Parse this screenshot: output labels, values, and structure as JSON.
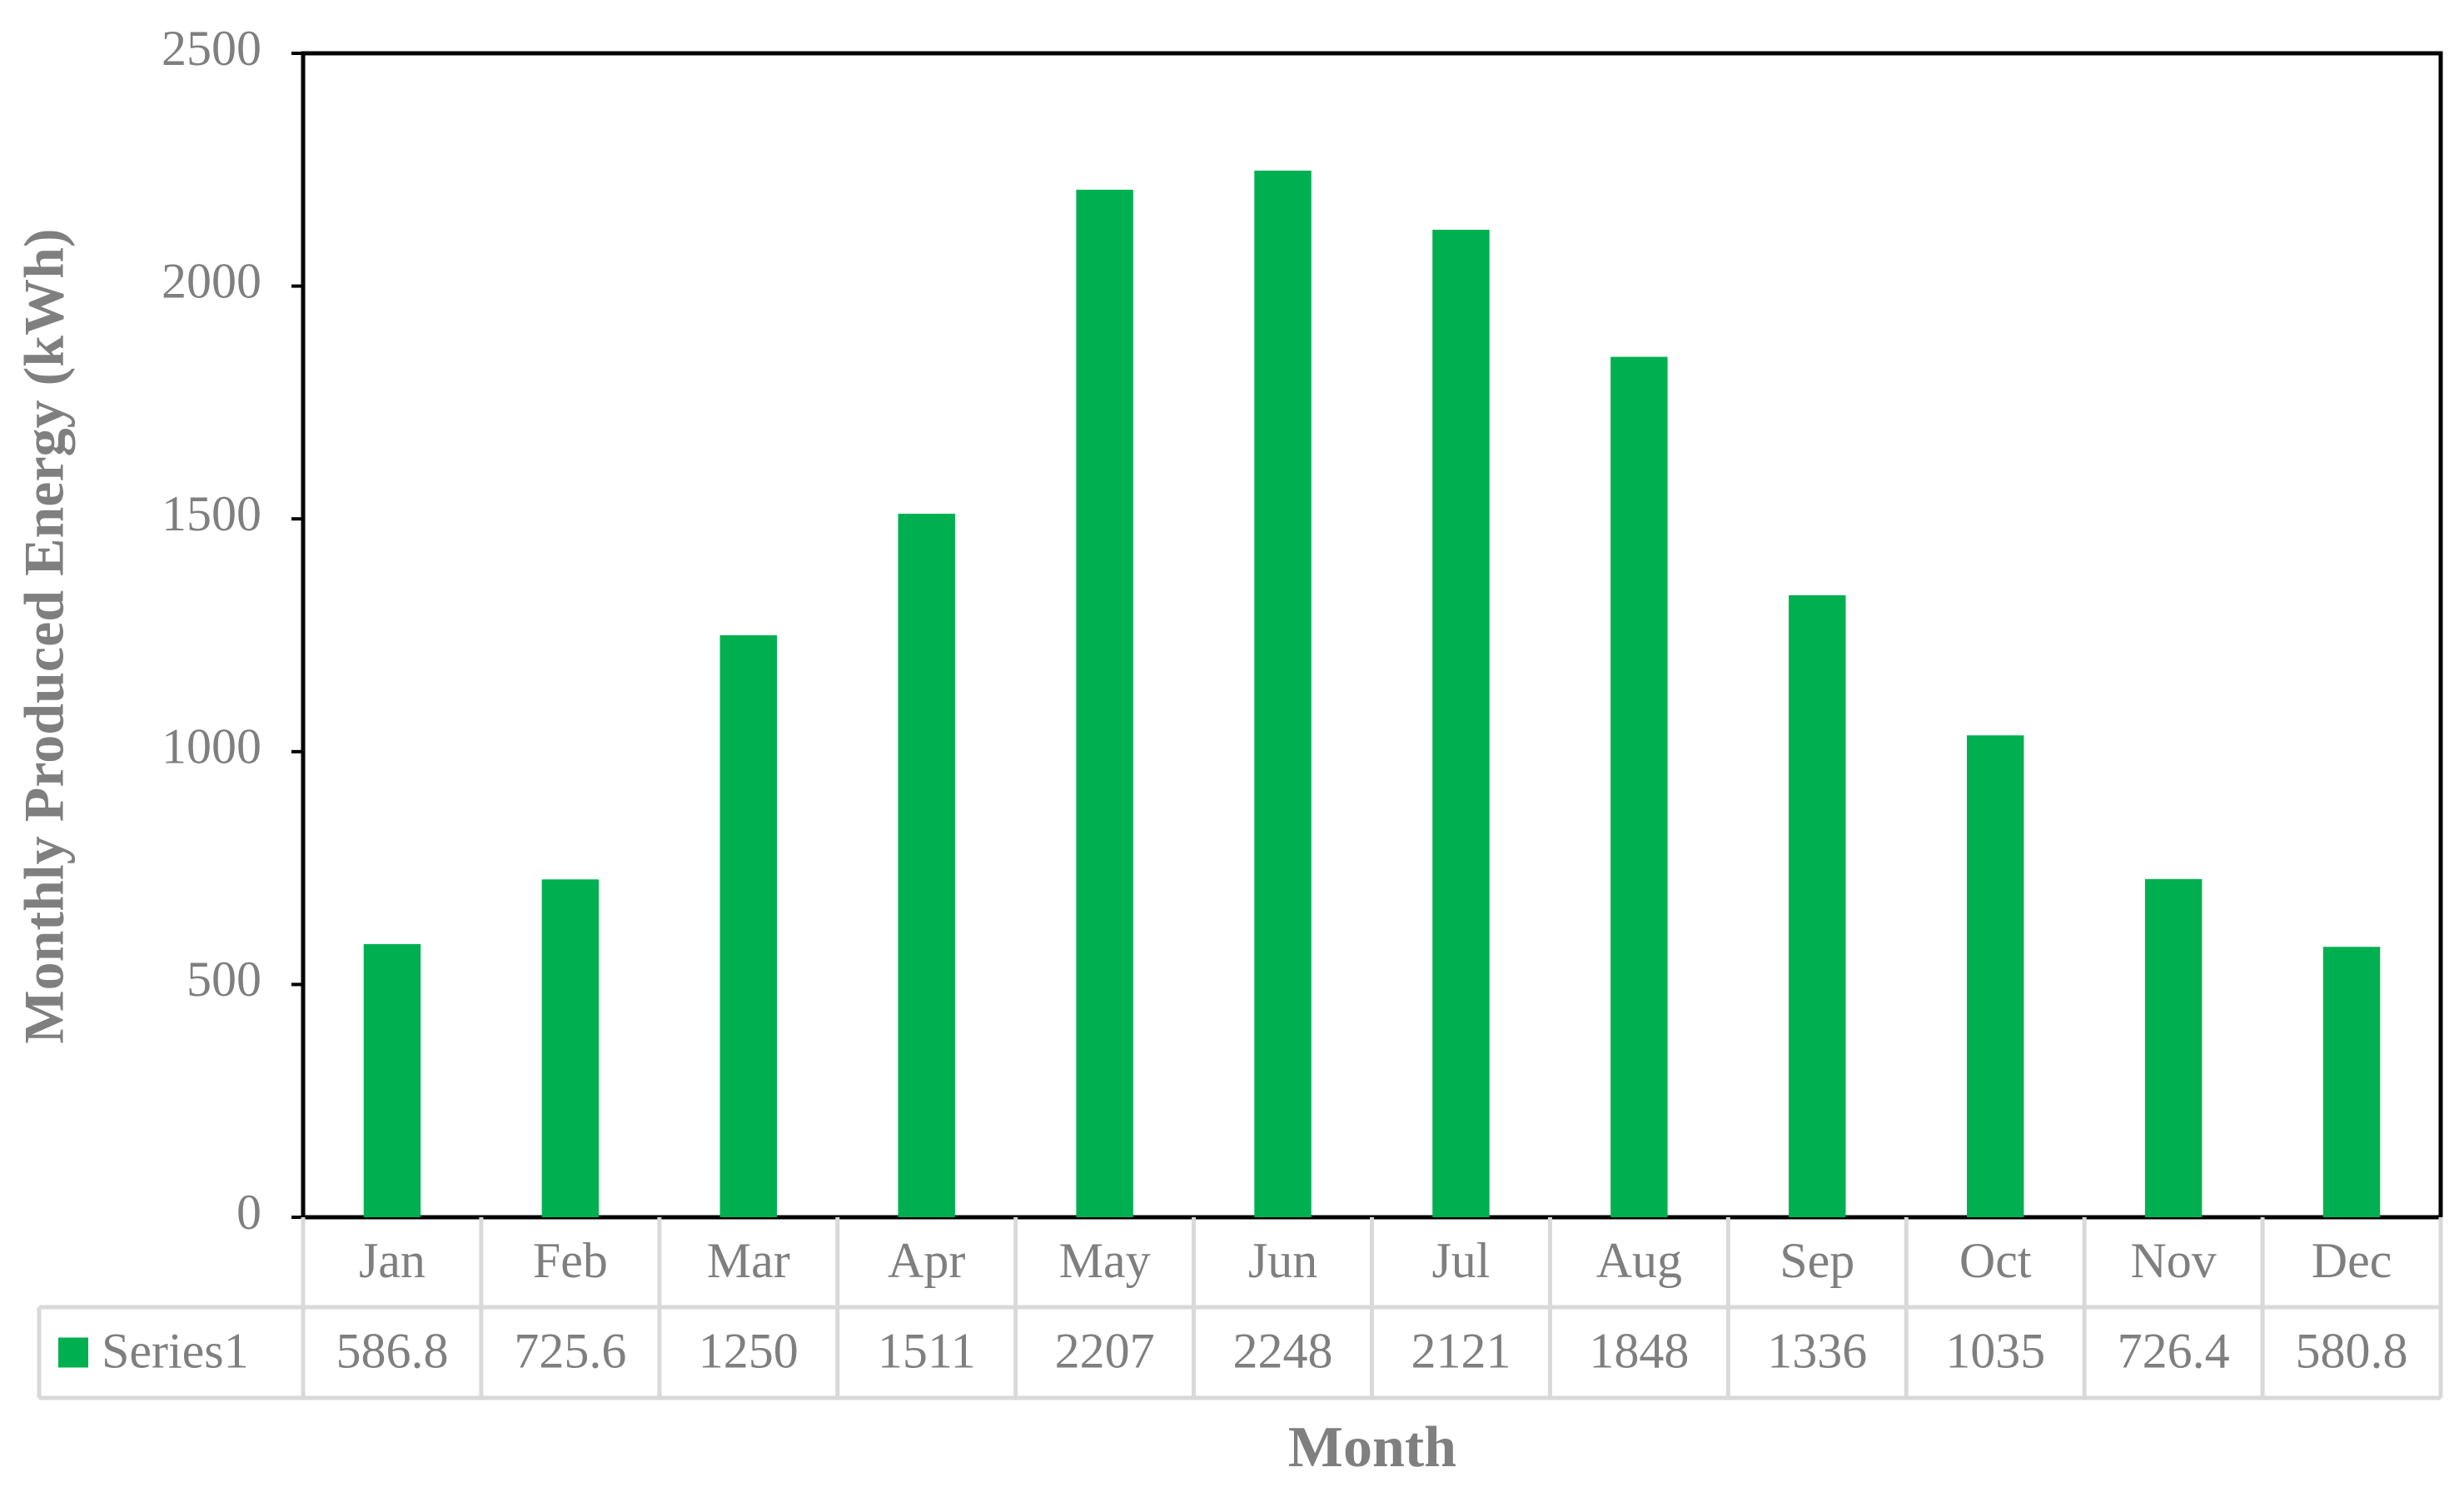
{
  "chart_data": {
    "type": "bar",
    "x_label": "Month",
    "y_label": "Monthly Produced Energy (kWh)",
    "categories": [
      "Jan",
      "Feb",
      "Mar",
      "Apr",
      "May",
      "Jun",
      "Jul",
      "Aug",
      "Sep",
      "Oct",
      "Nov",
      "Dec"
    ],
    "series": [
      {
        "name": "Series1",
        "color": "#00b050",
        "values": [
          586.8,
          725.6,
          1250,
          1511,
          2207,
          2248,
          2121,
          1848,
          1336,
          1035,
          726.4,
          580.8
        ]
      }
    ],
    "ylim": [
      0,
      2500
    ],
    "yticks": [
      0,
      500,
      1000,
      1500,
      2000,
      2500
    ],
    "data_table": true
  }
}
